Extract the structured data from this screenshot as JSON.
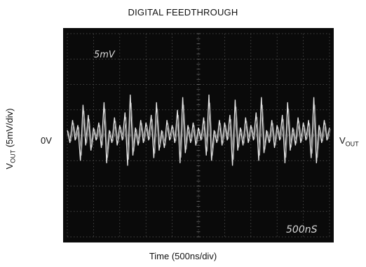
{
  "chart_data": {
    "type": "line",
    "title": "DIGITAL FEEDTHROUGH",
    "xlabel": "Time (500ns/div)",
    "ylabel_main": "V",
    "ylabel_sub": "OUT",
    "ylabel_rest": " (5mV/div)",
    "zero_label": "0V",
    "right_label_main": "V",
    "right_label_sub": "OUT",
    "screen_top_label": "5mV",
    "screen_bottom_label": "500nS",
    "x_divisions": 10,
    "y_divisions": 8,
    "grid": true,
    "series": [
      {
        "x": [
          0,
          0.1,
          0.2,
          0.3,
          0.4,
          0.5,
          0.6,
          0.7,
          0.8,
          0.9,
          1.0,
          1.1,
          1.2,
          1.3,
          1.4,
          1.5,
          1.6,
          1.7,
          1.8,
          1.9,
          2.0,
          2.1,
          2.2,
          2.3,
          2.4,
          2.5,
          2.6,
          2.7,
          2.8,
          2.9,
          3.0,
          3.1,
          3.2,
          3.3,
          3.4,
          3.5,
          3.6,
          3.7,
          3.8,
          3.9,
          4.0,
          4.1,
          4.2,
          4.3,
          4.4,
          4.5,
          4.6,
          4.7,
          4.8,
          4.9,
          5.0,
          5.1,
          5.2,
          5.3,
          5.4,
          5.5,
          5.6,
          5.7,
          5.8,
          5.9,
          6.0,
          6.1,
          6.2,
          6.3,
          6.4,
          6.5,
          6.6,
          6.7,
          6.8,
          6.9,
          7.0,
          7.1,
          7.2,
          7.3,
          7.4,
          7.5,
          7.6,
          7.7,
          7.8,
          7.9,
          8.0,
          8.1,
          8.2,
          8.3,
          8.4,
          8.5,
          8.6,
          8.7,
          8.8,
          8.9,
          9.0,
          9.1,
          9.2,
          9.3,
          9.4,
          9.5,
          9.6,
          9.7,
          9.8,
          9.9,
          10.0
        ],
        "y": [
          0.2,
          -0.3,
          0.6,
          -0.2,
          0.4,
          -1.0,
          1.2,
          -0.4,
          0.8,
          -0.6,
          0.3,
          -0.2,
          0.5,
          -0.5,
          1.3,
          -1.1,
          0.2,
          -0.3,
          0.7,
          -0.4,
          0.4,
          -0.2,
          0.9,
          -1.2,
          1.6,
          -0.8,
          0.3,
          -0.4,
          0.6,
          -0.3,
          0.5,
          -0.2,
          0.8,
          -0.9,
          1.3,
          -0.6,
          0.2,
          -0.5,
          0.6,
          -0.2,
          0.4,
          -0.3,
          1.0,
          -1.1,
          1.5,
          -0.7,
          0.4,
          -0.3,
          0.5,
          -0.4,
          0.3,
          -0.2,
          0.7,
          -0.8,
          1.6,
          -1.0,
          0.2,
          -0.3,
          0.6,
          -0.4,
          0.5,
          -0.2,
          0.8,
          -1.2,
          1.4,
          -0.6,
          0.3,
          -0.4,
          0.7,
          -0.3,
          0.4,
          -0.2,
          0.9,
          -1.0,
          1.5,
          -0.7,
          0.2,
          -0.3,
          0.6,
          -0.5,
          0.4,
          -0.2,
          0.8,
          -1.1,
          1.3,
          -0.6,
          0.3,
          -0.4,
          0.7,
          -0.3,
          0.5,
          -0.2,
          0.6,
          -0.9,
          1.5,
          -1.1,
          0.4,
          -0.3,
          0.6,
          -0.2,
          0.3
        ]
      }
    ]
  }
}
